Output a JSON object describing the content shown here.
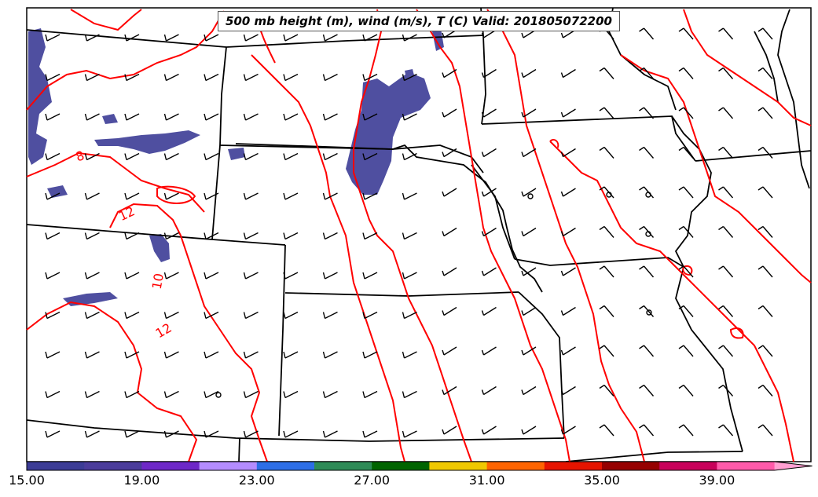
{
  "title": "500 mb height (m), wind (m/s), T (C) Valid: 201805072200",
  "contour_labels": [
    "8",
    "12",
    "10",
    "12"
  ],
  "colorbar": {
    "tick_labels": [
      "15.00",
      "19.00",
      "23.00",
      "27.00",
      "31.00",
      "35.00",
      "39.00"
    ],
    "colors": [
      "#3c3c96",
      "#4b3c9b",
      "#6e28c8",
      "#b48cff",
      "#2d6ee6",
      "#2e8b57",
      "#006400",
      "#f0c800",
      "#ff6400",
      "#e61400",
      "#960000",
      "#c8005a",
      "#ff5aaa",
      "#ffa0d2"
    ]
  },
  "colors": {
    "temperature_contour": "#ff0000",
    "wind_speed_fill": "#3c3c96",
    "boundaries": "#000000"
  }
}
